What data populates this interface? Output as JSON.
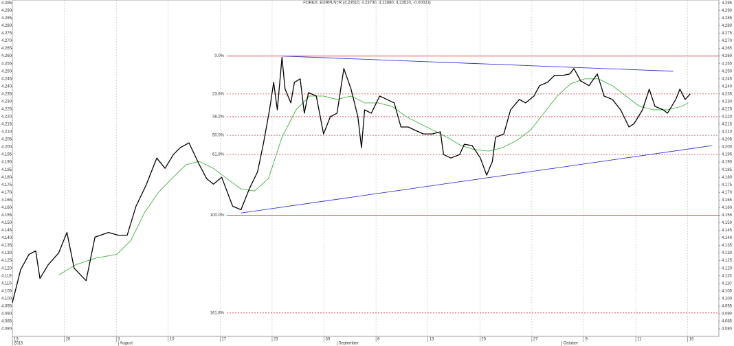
{
  "chart_data": {
    "type": "line",
    "title": "FOREX: EURPLN=R (4.23510, 4.23730, 4.22880, 4.23520, -0.00023)",
    "xlim": [
      0,
      13.6
    ],
    "xticks": [
      {
        "value": 0,
        "label": "13"
      },
      {
        "value": 1,
        "label": "20"
      },
      {
        "value": 2,
        "label": "3"
      },
      {
        "value": 3,
        "label": "10"
      },
      {
        "value": 4,
        "label": "17"
      },
      {
        "value": 5,
        "label": "23"
      },
      {
        "value": 6,
        "label": "30"
      },
      {
        "value": 7,
        "label": "8"
      },
      {
        "value": 8,
        "label": "13"
      },
      {
        "value": 9,
        "label": "20"
      },
      {
        "value": 10,
        "label": "27"
      },
      {
        "value": 11,
        "label": "9"
      },
      {
        "value": 12,
        "label": "11"
      },
      {
        "value": 13,
        "label": "18"
      }
    ],
    "month_labels": [
      {
        "value": 0,
        "label": "2015"
      },
      {
        "value": 2.04,
        "label": "August"
      },
      {
        "value": 6.25,
        "label": "September"
      },
      {
        "value": 10.58,
        "label": "October"
      }
    ],
    "ylim": [
      4.075,
      4.297
    ],
    "yticks": [
      {
        "value": 4.08,
        "label": "4.080"
      },
      4.085,
      {
        "value": 4.09,
        "label": "4.090"
      },
      4.095,
      {
        "value": 4.1,
        "label": "4.100"
      },
      4.105,
      {
        "value": 4.11,
        "label": "4.110"
      },
      4.115,
      {
        "value": 4.12,
        "label": "4.120"
      },
      4.125,
      {
        "value": 4.13,
        "label": "4.130"
      },
      4.135,
      {
        "value": 4.14,
        "label": "4.140"
      },
      4.145,
      {
        "value": 4.15,
        "label": "4.150"
      },
      4.155,
      {
        "value": 4.16,
        "label": "4.160"
      },
      4.165,
      {
        "value": 4.17,
        "label": "4.170"
      },
      4.175,
      {
        "value": 4.18,
        "label": "4.180"
      },
      4.185,
      {
        "value": 4.19,
        "label": "4.190"
      },
      4.195,
      {
        "value": 4.2,
        "label": "4.200"
      },
      4.205,
      {
        "value": 4.21,
        "label": "4.210"
      },
      4.215,
      {
        "value": 4.22,
        "label": "4.220"
      },
      4.225,
      {
        "value": 4.23,
        "label": "4.230"
      },
      4.235,
      {
        "value": 4.24,
        "label": "4.240"
      },
      4.245,
      {
        "value": 4.25,
        "label": "4.250"
      },
      4.255,
      {
        "value": 4.26,
        "label": "4.260"
      },
      4.265,
      {
        "value": 4.27,
        "label": "4.270"
      },
      4.275,
      {
        "value": 4.28,
        "label": "4.280"
      },
      4.285,
      {
        "value": 4.29,
        "label": "4.290"
      },
      4.295
    ],
    "grid": true,
    "series": [
      {
        "color": "#000000",
        "x": [
          0,
          0.16,
          0.32,
          0.45,
          0.53,
          0.69,
          0.89,
          1.05,
          1.19,
          1.42,
          1.59,
          1.85,
          2.04,
          2.21,
          2.38,
          2.57,
          2.78,
          2.94,
          3.1,
          3.23,
          3.4,
          3.6,
          3.74,
          3.87,
          4.03,
          4.24,
          4.4,
          4.56,
          4.72,
          4.83,
          4.95,
          5.03,
          5.1,
          5.19,
          5.25,
          5.36,
          5.43,
          5.54,
          5.62,
          5.7,
          5.85,
          5.99,
          6.12,
          6.25,
          6.38,
          6.52,
          6.65,
          6.72,
          6.78,
          6.91,
          7.07,
          7.21,
          7.35,
          7.48,
          7.62,
          7.76,
          7.91,
          8.08,
          8.24,
          8.3,
          8.44,
          8.61,
          8.7,
          8.85,
          9.01,
          9.13,
          9.24,
          9.3,
          9.46,
          9.59,
          9.76,
          9.88,
          10.04,
          10.15,
          10.3,
          10.44,
          10.6,
          10.73,
          10.81,
          10.94,
          11.1,
          11.26,
          11.39,
          11.55,
          11.71,
          11.87,
          11.97,
          12.13,
          12.26,
          12.37,
          12.53,
          12.61,
          12.77,
          12.85,
          12.95,
          13.05
        ],
        "values": [
          4.0973,
          4.1191,
          4.1291,
          4.1314,
          4.1132,
          4.1223,
          4.13,
          4.1436,
          4.12,
          4.1118,
          4.1405,
          4.1436,
          4.1418,
          4.1418,
          4.1609,
          4.1745,
          4.1927,
          4.1859,
          4.195,
          4.1995,
          4.2027,
          4.1882,
          4.1791,
          4.1755,
          4.18,
          4.1609,
          4.1586,
          4.1723,
          4.1836,
          4.2018,
          4.2245,
          4.2427,
          4.2245,
          4.2591,
          4.2382,
          4.2291,
          4.2427,
          4.245,
          4.2223,
          4.2359,
          4.2336,
          4.2086,
          4.22,
          4.2223,
          4.2518,
          4.2382,
          4.22,
          4.1995,
          4.2245,
          4.2223,
          4.2336,
          4.2314,
          4.2291,
          4.2132,
          4.2132,
          4.2109,
          4.2086,
          4.2086,
          4.21,
          4.195,
          4.1927,
          4.195,
          4.2018,
          4.2009,
          4.1927,
          4.1814,
          4.1905,
          4.2064,
          4.2086,
          4.2245,
          4.2314,
          4.2291,
          4.2336,
          4.2405,
          4.2427,
          4.2473,
          4.2473,
          4.2482,
          4.2518,
          4.2436,
          4.2405,
          4.2482,
          4.2336,
          4.2314,
          4.2245,
          4.2132,
          4.2155,
          4.2245,
          4.2382,
          4.2268,
          4.2245,
          4.2223,
          4.2314,
          4.2382,
          4.2314,
          4.235
        ]
      },
      {
        "color": "#3cb43c",
        "x": [
          0.89,
          1.22,
          1.62,
          2.01,
          2.28,
          2.54,
          2.81,
          3.07,
          3.34,
          3.6,
          3.87,
          4.13,
          4.4,
          4.66,
          4.93,
          5.19,
          5.46,
          5.72,
          5.99,
          6.25,
          6.52,
          6.78,
          7.05,
          7.31,
          7.58,
          7.84,
          8.11,
          8.37,
          8.64,
          8.9,
          9.17,
          9.43,
          9.7,
          9.97,
          10.23,
          10.49,
          10.75,
          11.02,
          11.28,
          11.55,
          11.81,
          12.07,
          12.34,
          12.61,
          12.88,
          13.01
        ],
        "values": [
          4.1155,
          4.1223,
          4.1268,
          4.1291,
          4.1382,
          4.1564,
          4.17,
          4.1791,
          4.1882,
          4.1905,
          4.1859,
          4.1791,
          4.1723,
          4.1709,
          4.1791,
          4.2064,
          4.2245,
          4.2336,
          4.2336,
          4.2314,
          4.2336,
          4.2291,
          4.2291,
          4.2268,
          4.22,
          4.2155,
          4.2109,
          4.2064,
          4.2009,
          4.1982,
          4.1973,
          4.1995,
          4.2041,
          4.2109,
          4.2223,
          4.2336,
          4.2418,
          4.245,
          4.245,
          4.2405,
          4.2336,
          4.2268,
          4.2245,
          4.2245,
          4.2268,
          4.2291
        ]
      }
    ],
    "trendline_color": "#3030e0",
    "trendlines": [
      {
        "x": [
          5.19,
          12.72
        ],
        "values": [
          4.26,
          4.25
        ]
      },
      {
        "x": [
          4.4,
          13.47
        ],
        "values": [
          4.1564,
          4.2009
        ]
      }
    ],
    "level_color": "#e03030",
    "levels": [
      {
        "label": "0.0%",
        "value": 4.26
      },
      {
        "label": "23.6%",
        "value": 4.235
      },
      {
        "label": "38.2%",
        "value": 4.22
      },
      {
        "label": "50.0%",
        "value": 4.2077
      },
      {
        "label": "61.8%",
        "value": 4.195
      },
      {
        "label": "100.0%",
        "value": 4.155
      },
      {
        "label": "161.8%",
        "value": 4.0905
      }
    ]
  }
}
